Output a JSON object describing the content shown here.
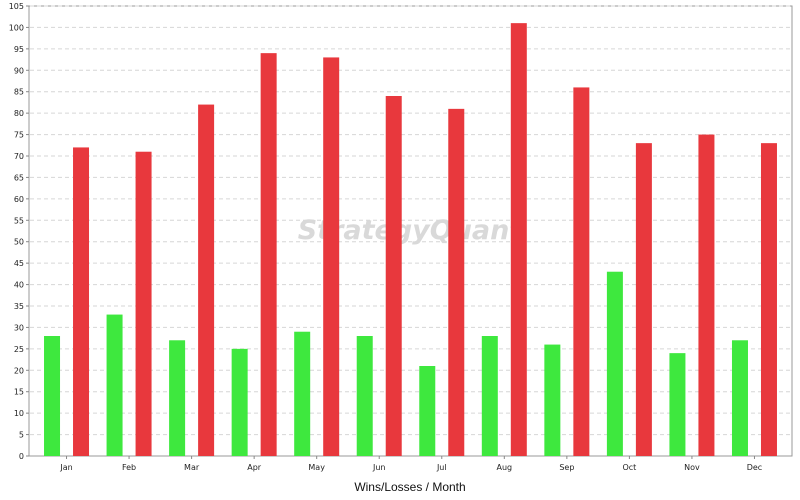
{
  "chart_data": {
    "type": "bar",
    "categories": [
      "Jan",
      "Feb",
      "Mar",
      "Apr",
      "May",
      "Jun",
      "Jul",
      "Aug",
      "Sep",
      "Oct",
      "Nov",
      "Dec"
    ],
    "series": [
      {
        "values": [
          28,
          33,
          27,
          25,
          29,
          28,
          21,
          28,
          26,
          43,
          24,
          27
        ],
        "color": "#3ee83e"
      },
      {
        "values": [
          72,
          71,
          82,
          94,
          93,
          84,
          81,
          101,
          86,
          73,
          75,
          73
        ],
        "color": "#e8383d"
      }
    ],
    "title": "",
    "xlabel": "Wins/Losses / Month",
    "ylabel": "",
    "ylim": [
      0,
      105
    ],
    "yticks": [
      0,
      5,
      10,
      15,
      20,
      25,
      30,
      35,
      40,
      45,
      50,
      55,
      60,
      65,
      70,
      75,
      80,
      85,
      90,
      95,
      100,
      105
    ],
    "grid": true,
    "legend": "none",
    "watermark": "StrategyQuant"
  }
}
